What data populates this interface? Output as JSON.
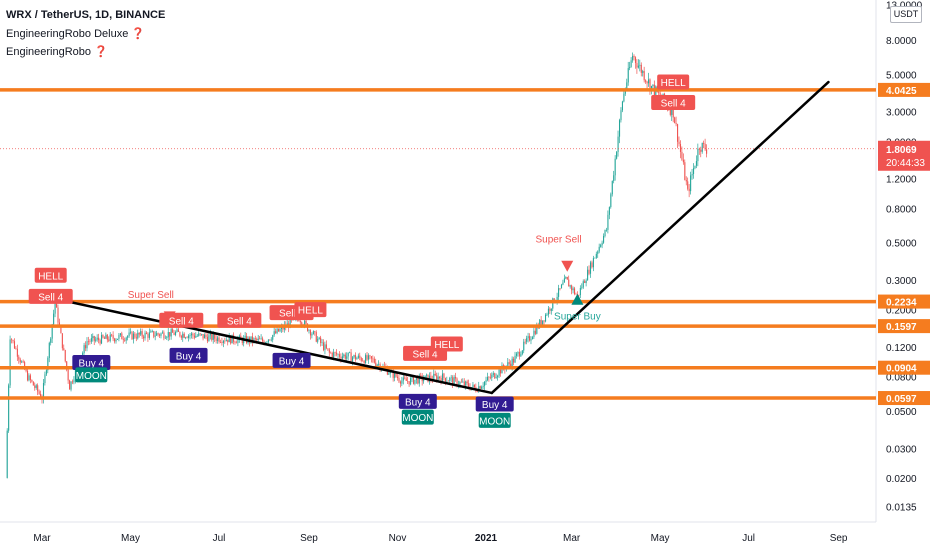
{
  "header": {
    "symbol_line": "WRX / TetherUS, 1D, BINANCE",
    "indicator_1": "EngineeringRobo Deluxe ❓",
    "indicator_2": "EngineeringRobo ❓"
  },
  "currency_button": "USDT",
  "colors": {
    "level_line": "#f57c1f",
    "trendline": "#000000",
    "candle_up": "#26a69a",
    "candle_down": "#ef5350",
    "sell_tag": "#f05350",
    "buy_tag": "#311b92",
    "moon_tag": "#00897b",
    "super_sell_text": "#f05350",
    "super_buy_text": "#26a69a",
    "price_label_bg": "#ef5350"
  },
  "chart_data": {
    "type": "candlestick",
    "title": "WRX / TetherUS, 1D, BINANCE",
    "y_scale": "log",
    "x_ticks": [
      "Mar",
      "May",
      "Jul",
      "Sep",
      "Nov",
      "2021",
      "Mar",
      "May",
      "Jul",
      "Sep"
    ],
    "y_ticks": [
      "13.0000",
      "8.0000",
      "5.0000",
      "3.0000",
      "2.0000",
      "1.2000",
      "0.8000",
      "0.5000",
      "0.3000",
      "0.2000",
      "0.1200",
      "0.0800",
      "0.0500",
      "0.0300",
      "0.0200",
      "0.0135"
    ],
    "horizontal_levels": [
      {
        "label": "4.0425",
        "value": 4.0425
      },
      {
        "label": "0.2234",
        "value": 0.2234
      },
      {
        "label": "0.1597",
        "value": 0.1597
      },
      {
        "label": "0.0904",
        "value": 0.0904
      },
      {
        "label": "0.0597",
        "value": 0.0597
      }
    ],
    "last_price": {
      "value": "1.8069",
      "countdown": "20:44:33"
    },
    "price_path": [
      {
        "date": "2020-02-05",
        "price": 0.02
      },
      {
        "date": "2020-02-08",
        "price": 0.14
      },
      {
        "date": "2020-02-20",
        "price": 0.08
      },
      {
        "date": "2020-03-01",
        "price": 0.06
      },
      {
        "date": "2020-03-10",
        "price": 0.22
      },
      {
        "date": "2020-03-20",
        "price": 0.07
      },
      {
        "date": "2020-04-01",
        "price": 0.13
      },
      {
        "date": "2020-05-01",
        "price": 0.14
      },
      {
        "date": "2020-06-01",
        "price": 0.145
      },
      {
        "date": "2020-07-01",
        "price": 0.135
      },
      {
        "date": "2020-08-01",
        "price": 0.13
      },
      {
        "date": "2020-08-25",
        "price": 0.18
      },
      {
        "date": "2020-09-15",
        "price": 0.11
      },
      {
        "date": "2020-10-15",
        "price": 0.1
      },
      {
        "date": "2020-11-05",
        "price": 0.075
      },
      {
        "date": "2020-12-01",
        "price": 0.08
      },
      {
        "date": "2020-12-25",
        "price": 0.068
      },
      {
        "date": "2021-01-20",
        "price": 0.1
      },
      {
        "date": "2021-02-10",
        "price": 0.18
      },
      {
        "date": "2021-02-25",
        "price": 0.3
      },
      {
        "date": "2021-03-05",
        "price": 0.24
      },
      {
        "date": "2021-03-25",
        "price": 0.6
      },
      {
        "date": "2021-04-05",
        "price": 3.5
      },
      {
        "date": "2021-04-12",
        "price": 6.5
      },
      {
        "date": "2021-04-25",
        "price": 4.2
      },
      {
        "date": "2021-05-10",
        "price": 3.0
      },
      {
        "date": "2021-05-20",
        "price": 1.0
      },
      {
        "date": "2021-05-28",
        "price": 1.9
      },
      {
        "date": "2021-06-02",
        "price": 1.8069
      }
    ],
    "trendlines": [
      {
        "from": {
          "date": "2020-03-12",
          "price": 0.23
        },
        "to": {
          "date": "2021-01-05",
          "price": 0.064
        }
      },
      {
        "from": {
          "date": "2021-01-05",
          "price": 0.064
        },
        "to": {
          "date": "2021-08-25",
          "price": 4.5
        }
      }
    ],
    "signals": [
      {
        "type": "tag",
        "label": "HELL",
        "color": "sell",
        "date": "2020-03-07",
        "price": 0.32
      },
      {
        "type": "tag",
        "label": "Sell 4",
        "color": "sell",
        "date": "2020-03-07",
        "price": 0.24
      },
      {
        "type": "tag",
        "label": "Buy 4",
        "color": "buy",
        "date": "2020-04-04",
        "price": 0.097
      },
      {
        "type": "tag",
        "label": "MOON",
        "color": "moon",
        "date": "2020-04-04",
        "price": 0.082
      },
      {
        "type": "text",
        "label": "Super Sell",
        "color": "super_sell",
        "date": "2020-05-15",
        "price": 0.235
      },
      {
        "type": "triangle_down",
        "date": "2020-05-28",
        "price": 0.18
      },
      {
        "type": "tag",
        "label": "Sell 4",
        "color": "sell",
        "date": "2020-06-05",
        "price": 0.173
      },
      {
        "type": "tag",
        "label": "Buy 4",
        "color": "buy",
        "date": "2020-06-10",
        "price": 0.107
      },
      {
        "type": "tag",
        "label": "Sell 4",
        "color": "sell",
        "date": "2020-07-15",
        "price": 0.173
      },
      {
        "type": "tag",
        "label": "Sell 4",
        "color": "sell",
        "date": "2020-08-20",
        "price": 0.192
      },
      {
        "type": "tag",
        "label": "HELL",
        "color": "sell",
        "date": "2020-09-02",
        "price": 0.2
      },
      {
        "type": "tag",
        "label": "Buy 4",
        "color": "buy",
        "date": "2020-08-20",
        "price": 0.1
      },
      {
        "type": "tag",
        "label": "Sell 4",
        "color": "sell",
        "date": "2020-11-20",
        "price": 0.11
      },
      {
        "type": "tag",
        "label": "HELL",
        "color": "sell",
        "date": "2020-12-05",
        "price": 0.125
      },
      {
        "type": "tag",
        "label": "Buy 4",
        "color": "buy",
        "date": "2020-11-15",
        "price": 0.057
      },
      {
        "type": "tag",
        "label": "MOON",
        "color": "moon",
        "date": "2020-11-15",
        "price": 0.046
      },
      {
        "type": "tag",
        "label": "Buy 4",
        "color": "buy",
        "date": "2021-01-07",
        "price": 0.055
      },
      {
        "type": "tag",
        "label": "MOON",
        "color": "moon",
        "date": "2021-01-07",
        "price": 0.044
      },
      {
        "type": "text",
        "label": "Super Sell",
        "color": "super_sell",
        "date": "2021-02-20",
        "price": 0.5
      },
      {
        "type": "triangle_down",
        "date": "2021-02-26",
        "price": 0.36
      },
      {
        "type": "triangle_up",
        "date": "2021-03-05",
        "price": 0.232
      },
      {
        "type": "text",
        "label": "Super Buy",
        "color": "super_buy",
        "date": "2021-03-05",
        "price": 0.175
      },
      {
        "type": "tag",
        "label": "HELL",
        "color": "sell",
        "date": "2021-05-10",
        "price": 4.5
      },
      {
        "type": "tag",
        "label": "Sell 4",
        "color": "sell",
        "date": "2021-05-10",
        "price": 3.4
      }
    ]
  }
}
